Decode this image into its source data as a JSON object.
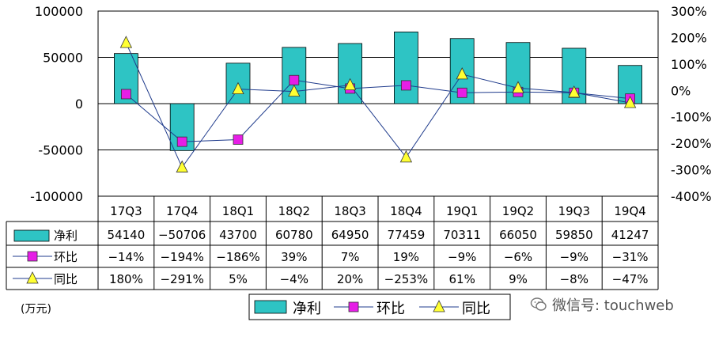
{
  "chart_data": {
    "type": "bar",
    "categories": [
      "17Q3",
      "17Q4",
      "18Q1",
      "18Q2",
      "18Q3",
      "18Q4",
      "19Q1",
      "19Q2",
      "19Q3",
      "19Q4"
    ],
    "y_left": {
      "ylim": [
        -100000,
        100000
      ],
      "ticks": [
        "100000",
        "50000",
        "0",
        "-50000",
        "-100000"
      ]
    },
    "y_right": {
      "ylim": [
        -400,
        300
      ],
      "ticks": [
        "300%",
        "200%",
        "100%",
        "0%",
        "-100%",
        "-200%",
        "-300%",
        "-400%"
      ]
    },
    "series": [
      {
        "name": "净利",
        "type": "bar",
        "axis": "left",
        "color": "#2EC4C4",
        "values": [
          54140,
          -50706,
          43700,
          60780,
          64950,
          77459,
          70311,
          66050,
          59850,
          41247
        ],
        "labels": [
          "54140",
          "-50706",
          "43700",
          "60780",
          "64950",
          "77459",
          "70311",
          "66050",
          "59850",
          "41247"
        ]
      },
      {
        "name": "环比",
        "type": "line",
        "axis": "right",
        "color": "#E61EE6",
        "marker": "square",
        "values": [
          -14,
          -194,
          -186,
          39,
          7,
          19,
          -9,
          -6,
          -9,
          -31
        ],
        "labels": [
          "-14%",
          "-194%",
          "-186%",
          "39%",
          "7%",
          "19%",
          "-9%",
          "-6%",
          "-9%",
          "-31%"
        ]
      },
      {
        "name": "同比",
        "type": "line",
        "axis": "right",
        "color": "#FFFF33",
        "marker": "triangle",
        "values": [
          180,
          -291,
          5,
          -4,
          20,
          -253,
          61,
          9,
          -8,
          -47
        ],
        "labels": [
          "180%",
          "-291%",
          "5%",
          "-4%",
          "20%",
          "-253%",
          "61%",
          "9%",
          "-8%",
          "-47%"
        ]
      }
    ],
    "grid": true,
    "legend": "bottom-center"
  },
  "unit_label": "(万元)",
  "watermark": "微信号: touchweb"
}
